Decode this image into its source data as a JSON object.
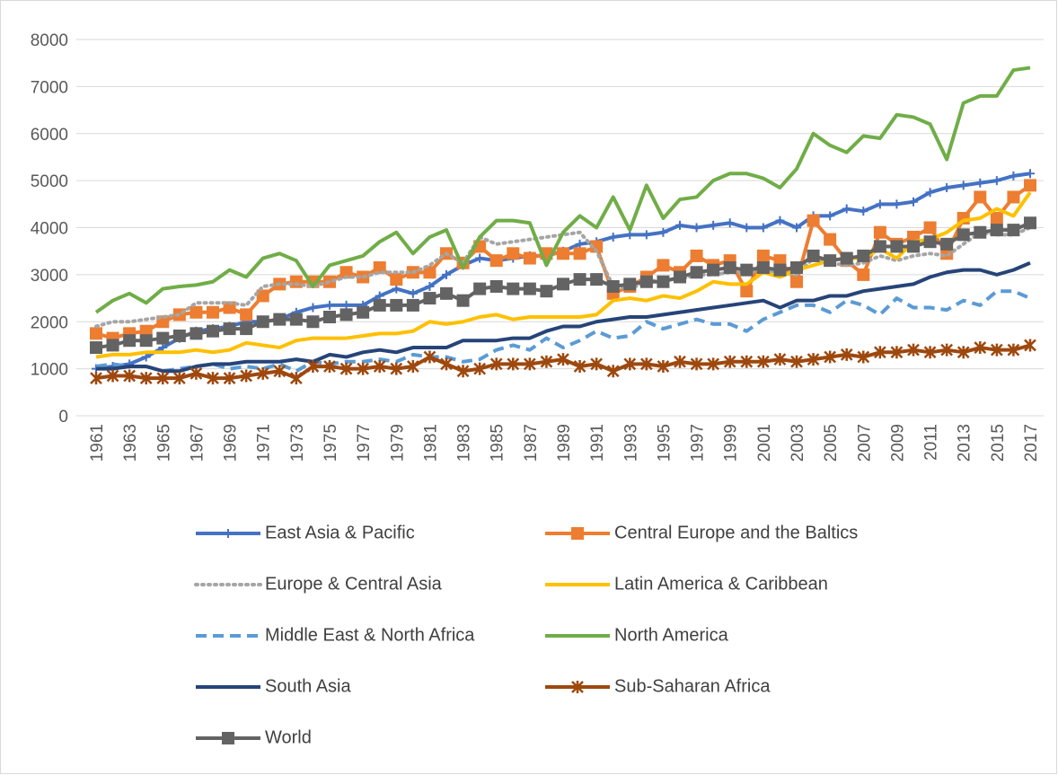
{
  "chart_data": {
    "type": "line",
    "categories": [
      "1961",
      null,
      "1963",
      null,
      "1965",
      null,
      "1967",
      null,
      "1969",
      null,
      "1971",
      null,
      "1973",
      null,
      "1975",
      null,
      "1977",
      null,
      "1979",
      null,
      "1981",
      null,
      "1983",
      null,
      "1985",
      null,
      "1987",
      null,
      "1989",
      null,
      "1991",
      null,
      "1993",
      null,
      "1995",
      null,
      "1997",
      null,
      "1999",
      null,
      "2001",
      null,
      "2003",
      null,
      "2005",
      null,
      "2007",
      null,
      "2009",
      null,
      "2011",
      null,
      "2013",
      null,
      "2015",
      null,
      "2017"
    ],
    "ylim": [
      0,
      8000
    ],
    "yticks": [
      0,
      1000,
      2000,
      3000,
      4000,
      5000,
      6000,
      7000,
      8000
    ],
    "grid": true,
    "series": [
      {
        "name": "East Asia & Pacific",
        "color": "#4472c4",
        "marker": "plus",
        "values": [
          1000,
          1050,
          1100,
          1250,
          1450,
          1650,
          1800,
          1850,
          1900,
          2000,
          2000,
          2050,
          2200,
          2300,
          2350,
          2350,
          2350,
          2550,
          2700,
          2600,
          2750,
          3000,
          3200,
          3350,
          3300,
          3350,
          3400,
          3400,
          3500,
          3650,
          3700,
          3800,
          3850,
          3850,
          3900,
          4050,
          4000,
          4050,
          4100,
          4000,
          4000,
          4150,
          4000,
          4250,
          4250,
          4400,
          4350,
          4500,
          4500,
          4550,
          4750,
          4850,
          4900,
          4950,
          5000,
          5100,
          5150
        ]
      },
      {
        "name": "Central Europe and the Baltics",
        "color": "#ed7d31",
        "marker": "square",
        "values": [
          1750,
          1650,
          1750,
          1800,
          2000,
          2150,
          2200,
          2200,
          2300,
          2150,
          2550,
          2800,
          2850,
          2850,
          2850,
          3050,
          2950,
          3150,
          2900,
          3050,
          3050,
          3450,
          3250,
          3600,
          3300,
          3450,
          3350,
          3450,
          3450,
          3450,
          3600,
          2600,
          2750,
          2950,
          3200,
          3050,
          3400,
          3200,
          3300,
          2650,
          3400,
          3300,
          2850,
          4150,
          3750,
          3300,
          3000,
          3900,
          3650,
          3800,
          4000,
          3450,
          4200,
          4650,
          4200,
          4650,
          4900
        ]
      },
      {
        "name": "Europe & Central Asia",
        "color": "#a5a5a5",
        "dash": "dot",
        "values": [
          1900,
          2000,
          2000,
          2050,
          2100,
          2150,
          2400,
          2400,
          2400,
          2350,
          2750,
          2800,
          2800,
          2750,
          2850,
          2950,
          2950,
          3050,
          3050,
          3050,
          3200,
          3450,
          3250,
          3800,
          3650,
          3700,
          3750,
          3800,
          3850,
          3900,
          3500,
          2750,
          2700,
          2850,
          2900,
          2900,
          3000,
          3000,
          3050,
          3050,
          3100,
          3050,
          3000,
          3350,
          3250,
          3200,
          3250,
          3400,
          3300,
          3400,
          3450,
          3400,
          3650,
          3900,
          3850,
          3850,
          4000
        ]
      },
      {
        "name": "Latin America & Caribbean",
        "color": "#ffc000",
        "values": [
          1250,
          1300,
          1300,
          1350,
          1350,
          1350,
          1400,
          1350,
          1400,
          1550,
          1500,
          1450,
          1600,
          1650,
          1650,
          1650,
          1700,
          1750,
          1750,
          1800,
          2000,
          1950,
          2000,
          2100,
          2150,
          2050,
          2100,
          2100,
          2100,
          2100,
          2150,
          2450,
          2500,
          2450,
          2550,
          2500,
          2650,
          2850,
          2800,
          2800,
          3050,
          2950,
          3100,
          3200,
          3300,
          3350,
          3350,
          3550,
          3350,
          3700,
          3750,
          3900,
          4150,
          4200,
          4400,
          4250,
          4750
        ]
      },
      {
        "name": "Middle East & North Africa",
        "color": "#5b9bd5",
        "dash": "dash",
        "values": [
          1050,
          1100,
          1050,
          1050,
          950,
          1000,
          1050,
          1100,
          1000,
          1050,
          1000,
          1100,
          950,
          1150,
          1100,
          1150,
          1150,
          1200,
          1150,
          1300,
          1250,
          1250,
          1150,
          1200,
          1400,
          1500,
          1400,
          1650,
          1450,
          1600,
          1800,
          1650,
          1700,
          2000,
          1850,
          1950,
          2050,
          1950,
          1950,
          1800,
          2050,
          2200,
          2350,
          2350,
          2200,
          2450,
          2350,
          2150,
          2500,
          2300,
          2300,
          2250,
          2450,
          2350,
          2650,
          2650,
          2500
        ]
      },
      {
        "name": "North America",
        "color": "#70ad47",
        "values": [
          2200,
          2450,
          2600,
          2400,
          2700,
          2750,
          2780,
          2850,
          3100,
          2950,
          3350,
          3450,
          3300,
          2750,
          3200,
          3300,
          3400,
          3700,
          3900,
          3450,
          3800,
          3950,
          3150,
          3800,
          4150,
          4150,
          4100,
          3200,
          3900,
          4250,
          4000,
          4650,
          3950,
          4900,
          4200,
          4600,
          4650,
          5000,
          5150,
          5150,
          5050,
          4850,
          5250,
          6000,
          5750,
          5600,
          5950,
          5900,
          6400,
          6350,
          6200,
          5450,
          6650,
          6800,
          6800,
          7350,
          7400
        ]
      },
      {
        "name": "South Asia",
        "color": "#264478",
        "values": [
          1000,
          1000,
          1050,
          1050,
          950,
          950,
          1050,
          1100,
          1100,
          1150,
          1150,
          1150,
          1200,
          1150,
          1300,
          1250,
          1350,
          1400,
          1350,
          1450,
          1450,
          1450,
          1600,
          1600,
          1600,
          1650,
          1650,
          1800,
          1900,
          1900,
          2000,
          2050,
          2100,
          2100,
          2150,
          2200,
          2250,
          2300,
          2350,
          2400,
          2450,
          2300,
          2450,
          2450,
          2550,
          2550,
          2650,
          2700,
          2750,
          2800,
          2950,
          3050,
          3100,
          3100,
          3000,
          3100,
          3250
        ]
      },
      {
        "name": "Sub-Saharan Africa",
        "color": "#9e480e",
        "marker": "star",
        "values": [
          800,
          850,
          850,
          800,
          800,
          800,
          900,
          800,
          800,
          850,
          900,
          950,
          800,
          1050,
          1050,
          1000,
          1000,
          1050,
          1000,
          1050,
          1250,
          1100,
          950,
          1000,
          1100,
          1100,
          1100,
          1150,
          1200,
          1050,
          1100,
          950,
          1100,
          1100,
          1050,
          1150,
          1100,
          1100,
          1150,
          1150,
          1150,
          1200,
          1150,
          1200,
          1250,
          1300,
          1250,
          1350,
          1350,
          1400,
          1350,
          1400,
          1350,
          1450,
          1400,
          1400,
          1500
        ]
      },
      {
        "name": "World",
        "color": "#636363",
        "marker": "square",
        "values": [
          1450,
          1500,
          1600,
          1600,
          1650,
          1700,
          1750,
          1800,
          1850,
          1850,
          2000,
          2050,
          2050,
          2000,
          2100,
          2150,
          2200,
          2350,
          2350,
          2350,
          2500,
          2600,
          2450,
          2700,
          2750,
          2700,
          2700,
          2650,
          2800,
          2900,
          2900,
          2750,
          2800,
          2850,
          2850,
          2950,
          3050,
          3100,
          3150,
          3100,
          3150,
          3100,
          3150,
          3400,
          3300,
          3350,
          3400,
          3600,
          3600,
          3600,
          3700,
          3650,
          3850,
          3900,
          3950,
          3950,
          4100
        ]
      }
    ]
  }
}
